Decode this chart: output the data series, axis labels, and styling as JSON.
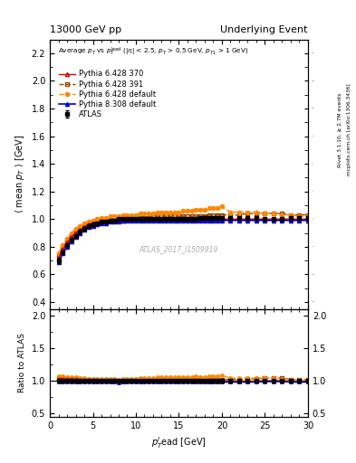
{
  "title_left": "13000 GeV pp",
  "title_right": "Underlying Event",
  "watermark": "ATLAS_2017_I1509919",
  "right_label_top": "Rivet 3.1.10, ≥ 2.7M events",
  "right_label_bot": "mcplots.cern.ch [arXiv:1306.3436]",
  "ylim_main": [
    0.35,
    2.3
  ],
  "ylim_ratio": [
    0.45,
    2.1
  ],
  "yticks_main": [
    0.4,
    0.6,
    0.8,
    1.0,
    1.2,
    1.4,
    1.6,
    1.8,
    2.0,
    2.2
  ],
  "yticks_ratio": [
    0.5,
    1.0,
    1.5,
    2.0
  ],
  "xlim": [
    0,
    30
  ],
  "xticks": [
    0,
    5,
    10,
    15,
    20,
    25,
    30
  ],
  "atlas_x": [
    1.0,
    1.5,
    2.0,
    2.5,
    3.0,
    3.5,
    4.0,
    4.5,
    5.0,
    5.5,
    6.0,
    6.5,
    7.0,
    7.5,
    8.0,
    8.5,
    9.0,
    9.5,
    10.0,
    10.5,
    11.0,
    11.5,
    12.0,
    12.5,
    13.0,
    13.5,
    14.0,
    14.5,
    15.0,
    15.5,
    16.0,
    16.5,
    17.0,
    17.5,
    18.0,
    18.5,
    19.0,
    19.5,
    20.0,
    21.0,
    22.0,
    23.0,
    24.0,
    25.0,
    26.0,
    27.0,
    28.0,
    29.0,
    30.0
  ],
  "atlas_y": [
    0.7,
    0.76,
    0.81,
    0.85,
    0.88,
    0.91,
    0.93,
    0.95,
    0.96,
    0.97,
    0.98,
    0.98,
    0.99,
    0.99,
    1.0,
    1.0,
    1.0,
    1.0,
    1.0,
    1.0,
    1.0,
    1.0,
    1.0,
    1.0,
    1.0,
    1.0,
    1.0,
    1.0,
    1.0,
    1.0,
    1.0,
    1.0,
    1.0,
    1.01,
    1.01,
    1.01,
    1.01,
    1.01,
    1.01,
    1.01,
    1.01,
    1.01,
    1.01,
    1.0,
    1.0,
    1.0,
    1.01,
    1.01,
    1.01
  ],
  "atlas_yerr": [
    0.02,
    0.01,
    0.01,
    0.01,
    0.01,
    0.01,
    0.01,
    0.01,
    0.01,
    0.005,
    0.005,
    0.005,
    0.005,
    0.005,
    0.005,
    0.005,
    0.005,
    0.005,
    0.005,
    0.005,
    0.005,
    0.005,
    0.005,
    0.005,
    0.005,
    0.005,
    0.005,
    0.005,
    0.005,
    0.005,
    0.005,
    0.01,
    0.01,
    0.01,
    0.01,
    0.01,
    0.01,
    0.01,
    0.01,
    0.01,
    0.01,
    0.01,
    0.01,
    0.01,
    0.01,
    0.01,
    0.01,
    0.01,
    0.01
  ],
  "py6_370_y": [
    0.72,
    0.78,
    0.83,
    0.87,
    0.9,
    0.92,
    0.94,
    0.96,
    0.97,
    0.97,
    0.98,
    0.98,
    0.99,
    0.99,
    0.99,
    0.99,
    1.0,
    1.0,
    1.0,
    1.0,
    1.0,
    1.0,
    1.0,
    1.0,
    1.0,
    1.0,
    1.0,
    1.0,
    1.0,
    1.0,
    1.0,
    1.0,
    1.0,
    1.0,
    1.0,
    1.0,
    1.0,
    1.0,
    1.0,
    1.0,
    1.0,
    1.0,
    1.0,
    1.0,
    1.0,
    1.0,
    1.0,
    1.0,
    1.0
  ],
  "py6_391_y": [
    0.73,
    0.79,
    0.84,
    0.88,
    0.91,
    0.93,
    0.95,
    0.96,
    0.97,
    0.98,
    0.98,
    0.99,
    0.99,
    1.0,
    1.0,
    1.0,
    1.0,
    1.01,
    1.01,
    1.01,
    1.01,
    1.01,
    1.02,
    1.02,
    1.02,
    1.02,
    1.02,
    1.02,
    1.02,
    1.02,
    1.02,
    1.02,
    1.02,
    1.02,
    1.02,
    1.03,
    1.03,
    1.03,
    1.03,
    1.03,
    1.03,
    1.04,
    1.04,
    1.04,
    1.04,
    1.04,
    1.03,
    1.03,
    1.03
  ],
  "py6_def_y": [
    0.75,
    0.81,
    0.86,
    0.9,
    0.93,
    0.95,
    0.97,
    0.98,
    0.99,
    1.0,
    1.01,
    1.01,
    1.02,
    1.02,
    1.02,
    1.03,
    1.03,
    1.03,
    1.03,
    1.04,
    1.04,
    1.04,
    1.04,
    1.05,
    1.05,
    1.05,
    1.05,
    1.05,
    1.05,
    1.06,
    1.06,
    1.06,
    1.07,
    1.07,
    1.07,
    1.08,
    1.08,
    1.08,
    1.09,
    1.05,
    1.05,
    1.05,
    1.05,
    1.04,
    1.04,
    1.03,
    1.03,
    1.02,
    1.02
  ],
  "py8_def_y": [
    0.69,
    0.75,
    0.8,
    0.84,
    0.87,
    0.9,
    0.92,
    0.94,
    0.95,
    0.96,
    0.97,
    0.97,
    0.98,
    0.98,
    0.98,
    0.99,
    0.99,
    0.99,
    0.99,
    0.99,
    0.99,
    0.99,
    0.99,
    0.99,
    0.99,
    0.99,
    0.99,
    0.99,
    0.99,
    0.99,
    0.99,
    0.99,
    0.99,
    0.99,
    0.99,
    0.99,
    0.99,
    0.99,
    0.99,
    0.99,
    0.99,
    0.99,
    0.99,
    0.99,
    0.99,
    0.99,
    0.99,
    0.99,
    0.99
  ],
  "color_atlas": "#000000",
  "color_py6_370": "#cc0000",
  "color_py6_391": "#994400",
  "color_py6_def": "#ff8800",
  "color_py8_def": "#0000cc",
  "band_color": "#aacc44",
  "band_alpha": 0.6
}
